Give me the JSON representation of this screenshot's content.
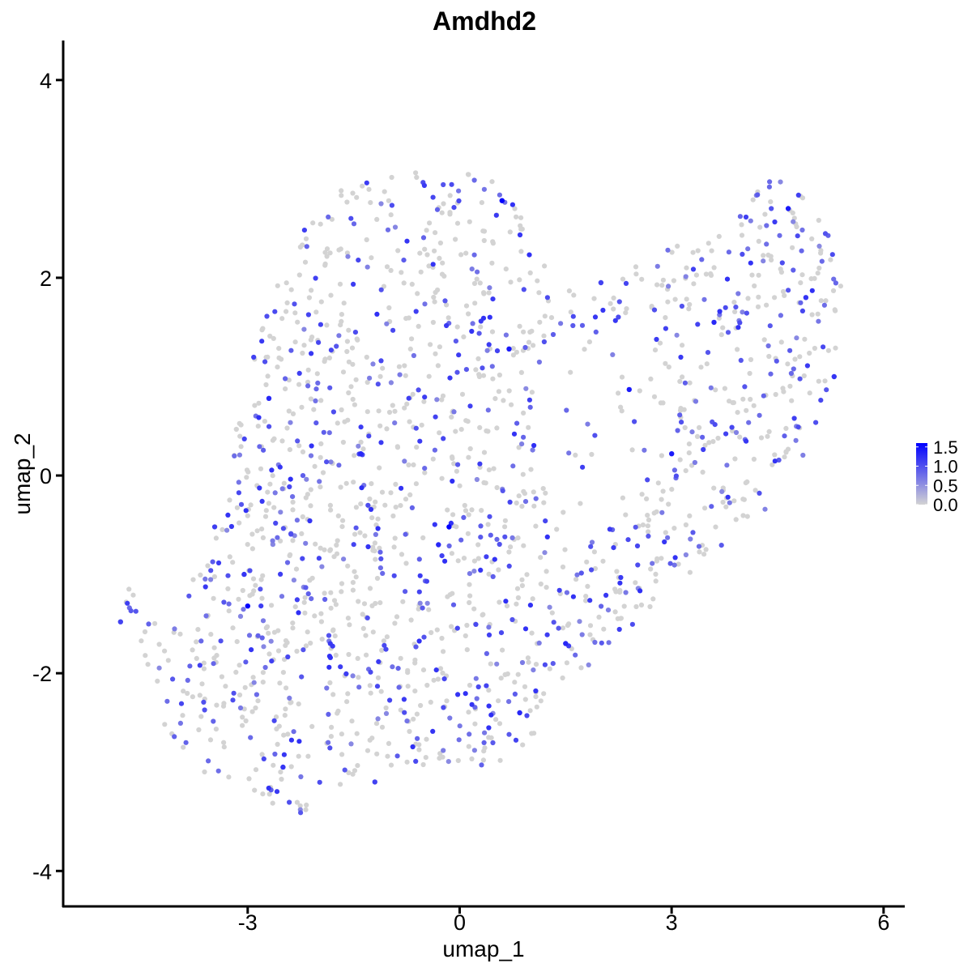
{
  "chart_data": {
    "type": "scatter",
    "title": "Amdhd2",
    "xlabel": "umap_1",
    "ylabel": "umap_2",
    "xlim": [
      -5.6,
      6.3
    ],
    "ylim": [
      -4.35,
      4.4
    ],
    "x_ticks": [
      -3,
      0,
      3,
      6
    ],
    "x_tick_labels": [
      "-3",
      "0",
      "3",
      "6"
    ],
    "y_ticks": [
      -4,
      -2,
      0,
      2,
      4
    ],
    "y_tick_labels": [
      "-4",
      "-2",
      "0",
      "2",
      "4"
    ],
    "grid": false,
    "colors": {
      "low": "#d3d3d3",
      "high": "#0000ff"
    },
    "legend": {
      "position": "right",
      "min": 0.0,
      "max": 1.6,
      "ticks": [
        1.5,
        1.0,
        0.5,
        0.0
      ],
      "tick_labels": [
        "1.5",
        "1.0",
        "0.5",
        "0.0"
      ]
    },
    "highlight_points": [
      {
        "x": 0.6,
        "y": 2.78,
        "value": 1.6
      },
      {
        "x": -0.15,
        "y": -0.52,
        "value": 1.6
      },
      {
        "x": -3.0,
        "y": -1.32,
        "value": 1.6
      },
      {
        "x": 4.65,
        "y": 2.7,
        "value": 1.4
      },
      {
        "x": 0.7,
        "y": 1.28,
        "value": 1.4
      },
      {
        "x": 2.4,
        "y": 0.87,
        "value": 1.4
      },
      {
        "x": 3.0,
        "y": 0.22,
        "value": 1.4
      },
      {
        "x": 3.6,
        "y": 1.55,
        "value": 1.3
      },
      {
        "x": -1.4,
        "y": 0.22,
        "value": 1.3
      },
      {
        "x": -0.3,
        "y": -0.7,
        "value": 1.3
      },
      {
        "x": -2.7,
        "y": 0.78,
        "value": 1.3
      },
      {
        "x": 1.5,
        "y": -1.7,
        "value": 1.3
      },
      {
        "x": 0.85,
        "y": -2.4,
        "value": 1.3
      },
      {
        "x": -2.5,
        "y": -2.95,
        "value": 1.2
      },
      {
        "x": -3.05,
        "y": -1.0,
        "value": 1.2
      },
      {
        "x": 4.9,
        "y": 1.8,
        "value": 1.2
      },
      {
        "x": 5.3,
        "y": 1.0,
        "value": 1.2
      },
      {
        "x": -4.8,
        "y": -1.48,
        "value": 1.1
      },
      {
        "x": 2.0,
        "y": 1.95,
        "value": 1.1
      },
      {
        "x": -1.2,
        "y": -3.1,
        "value": 1.1
      }
    ],
    "cloud": {
      "n_points": 1700,
      "expressing_fraction": 0.36,
      "outline_polygon": [
        [
          -4.75,
          -1.22
        ],
        [
          -4.3,
          -1.5
        ],
        [
          -4.1,
          -1.35
        ],
        [
          -3.75,
          -1.0
        ],
        [
          -3.45,
          -0.45
        ],
        [
          -3.3,
          0.25
        ],
        [
          -3.05,
          0.95
        ],
        [
          -2.9,
          1.55
        ],
        [
          -2.6,
          2.1
        ],
        [
          -2.25,
          2.55
        ],
        [
          -1.8,
          2.85
        ],
        [
          -1.2,
          3.05
        ],
        [
          -0.4,
          3.1
        ],
        [
          0.2,
          3.12
        ],
        [
          0.75,
          2.85
        ],
        [
          1.05,
          2.5
        ],
        [
          1.05,
          2.25
        ],
        [
          1.35,
          2.02
        ],
        [
          1.75,
          1.8
        ],
        [
          2.2,
          1.95
        ],
        [
          2.7,
          2.25
        ],
        [
          3.4,
          2.5
        ],
        [
          4.0,
          2.7
        ],
        [
          4.45,
          3.05
        ],
        [
          4.85,
          2.85
        ],
        [
          5.15,
          2.55
        ],
        [
          5.4,
          2.2
        ],
        [
          5.4,
          1.6
        ],
        [
          5.25,
          0.9
        ],
        [
          5.0,
          0.25
        ],
        [
          4.6,
          -0.15
        ],
        [
          4.05,
          -0.55
        ],
        [
          3.55,
          -0.85
        ],
        [
          3.25,
          -1.05
        ],
        [
          2.85,
          -1.35
        ],
        [
          2.4,
          -1.7
        ],
        [
          1.8,
          -1.95
        ],
        [
          1.3,
          -2.25
        ],
        [
          0.95,
          -2.75
        ],
        [
          0.5,
          -2.95
        ],
        [
          0.0,
          -3.05
        ],
        [
          -0.55,
          -2.95
        ],
        [
          -1.25,
          -2.95
        ],
        [
          -1.75,
          -3.2
        ],
        [
          -2.25,
          -3.5
        ],
        [
          -2.75,
          -3.3
        ],
        [
          -3.3,
          -3.1
        ],
        [
          -3.8,
          -2.95
        ],
        [
          -4.2,
          -2.6
        ],
        [
          -4.35,
          -2.05
        ],
        [
          -4.5,
          -1.8
        ]
      ],
      "excluded_region": [
        [
          1.4,
          1.5
        ],
        [
          2.1,
          1.5
        ],
        [
          2.75,
          1.3
        ],
        [
          3.1,
          0.9
        ],
        [
          3.0,
          0.2
        ],
        [
          2.6,
          -0.25
        ],
        [
          2.0,
          -0.55
        ],
        [
          1.4,
          -0.5
        ],
        [
          1.05,
          0.15
        ],
        [
          1.0,
          0.8
        ]
      ]
    }
  }
}
